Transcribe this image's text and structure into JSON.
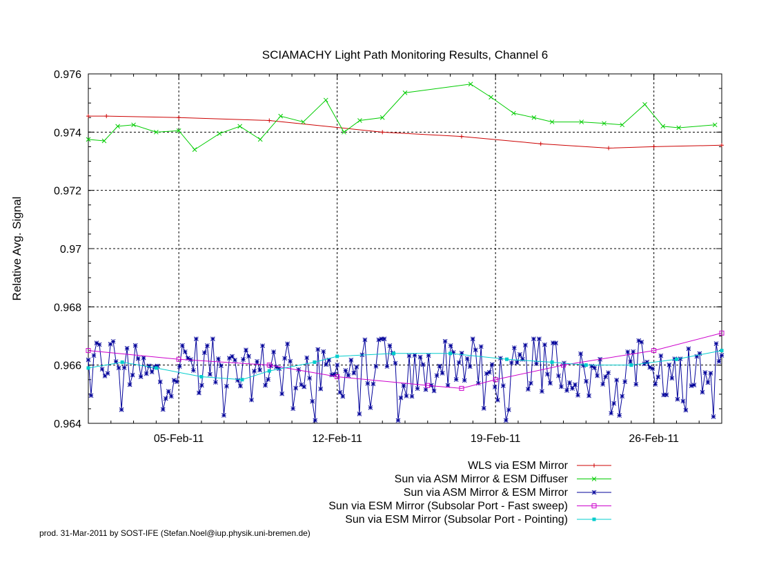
{
  "chart_data": {
    "type": "line",
    "title": "SCIAMACHY Light Path Monitoring Results, Channel 6",
    "xlabel": "",
    "ylabel": "Relative Avg. Signal",
    "x_axis": "date",
    "xlim": [
      "2011-02-01",
      "2011-02-29"
    ],
    "ylim": [
      0.964,
      0.976
    ],
    "x_ticks": [
      {
        "date": "2011-02-05",
        "label": "05-Feb-11"
      },
      {
        "date": "2011-02-12",
        "label": "12-Feb-11"
      },
      {
        "date": "2011-02-19",
        "label": "19-Feb-11"
      },
      {
        "date": "2011-02-26",
        "label": "26-Feb-11"
      }
    ],
    "y_ticks": [
      {
        "value": 0.964,
        "label": "0.964"
      },
      {
        "value": 0.966,
        "label": "0.966"
      },
      {
        "value": 0.968,
        "label": "0.968"
      },
      {
        "value": 0.97,
        "label": "0.97"
      },
      {
        "value": 0.972,
        "label": "0.972"
      },
      {
        "value": 0.974,
        "label": "0.974"
      },
      {
        "value": 0.976,
        "label": "0.976"
      }
    ],
    "grid": true,
    "legend_position": "bottom-right",
    "series": [
      {
        "name": "WLS via ESM Mirror",
        "color": "#cc0000",
        "marker": "plus",
        "x": [
          "2011-02-01",
          "2011-02-01.8",
          "2011-02-05",
          "2011-02-09",
          "2011-02-14",
          "2011-02-17.5",
          "2011-02-21",
          "2011-02-24",
          "2011-02-26",
          "2011-02-29"
        ],
        "y": [
          0.97455,
          0.97455,
          0.9745,
          0.9744,
          0.974,
          0.97385,
          0.9736,
          0.97345,
          0.9735,
          0.97355
        ]
      },
      {
        "name": "Sun via ASM Mirror & ESM Diffuser",
        "color": "#00cc00",
        "marker": "cross",
        "x": [
          "2011-02-01",
          "2011-02-01.7",
          "2011-02-02.3",
          "2011-02-03",
          "2011-02-04",
          "2011-02-05",
          "2011-02-05.7",
          "2011-02-06.8",
          "2011-02-07.7",
          "2011-02-08.6",
          "2011-02-09.5",
          "2011-02-10.5",
          "2011-02-11.5",
          "2011-02-12.3",
          "2011-02-13",
          "2011-02-14",
          "2011-02-15",
          "2011-02-17.9",
          "2011-02-18.8",
          "2011-02-19.8",
          "2011-02-20.7",
          "2011-02-21.5",
          "2011-02-22.8",
          "2011-02-23.8",
          "2011-02-24.6",
          "2011-02-25.6",
          "2011-02-26.4",
          "2011-02-27.1",
          "2011-02-28.7"
        ],
        "y": [
          0.97375,
          0.9737,
          0.9742,
          0.97425,
          0.974,
          0.97405,
          0.9734,
          0.97395,
          0.9742,
          0.97375,
          0.97455,
          0.97435,
          0.9751,
          0.974,
          0.9744,
          0.9745,
          0.97535,
          0.97565,
          0.9752,
          0.97465,
          0.9745,
          0.97435,
          0.97435,
          0.9743,
          0.97425,
          0.97495,
          0.9742,
          0.97415,
          0.97425
        ]
      },
      {
        "name": "Sun via ASM Mirror & ESM Mirror",
        "color": "#000099",
        "marker": "star",
        "points": "irregular dense data, ~230 points ranging 0.9641 to 0.9669"
      },
      {
        "name": "Sun via ESM Mirror (Subsolar Port - Fast sweep)",
        "color": "#cc00cc",
        "marker": "open-square",
        "x": [
          "2011-02-01",
          "2011-02-05",
          "2011-02-09",
          "2011-02-12",
          "2011-02-16",
          "2011-02-17.5",
          "2011-02-19",
          "2011-02-22",
          "2011-02-26",
          "2011-02-29"
        ],
        "y": [
          0.9665,
          0.9662,
          0.966,
          0.9656,
          0.9653,
          0.9652,
          0.9655,
          0.966,
          0.9665,
          0.9671
        ]
      },
      {
        "name": "Sun via ESM Mirror (Subsolar Port - Pointing)",
        "color": "#00cccc",
        "marker": "filled-square",
        "x": [
          "2011-02-01",
          "2011-02-02.5",
          "2011-02-04",
          "2011-02-06",
          "2011-02-07.8",
          "2011-02-09",
          "2011-02-11",
          "2011-02-12",
          "2011-02-14.5",
          "2011-02-17",
          "2011-02-19.5",
          "2011-02-21.5",
          "2011-02-23",
          "2011-02-25",
          "2011-02-27",
          "2011-02-29"
        ],
        "y": [
          0.9659,
          0.9661,
          0.9659,
          0.9656,
          0.9655,
          0.9658,
          0.9661,
          0.9663,
          0.9664,
          0.9664,
          0.9662,
          0.9661,
          0.966,
          0.966,
          0.9662,
          0.9665
        ]
      }
    ]
  },
  "footer": "prod. 31-Mar-2011 by SOST-IFE (Stefan.Noel@iup.physik.uni-bremen.de)"
}
